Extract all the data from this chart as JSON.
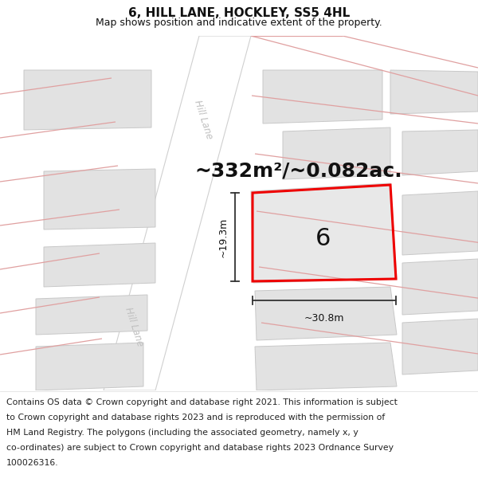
{
  "title": "6, HILL LANE, HOCKLEY, SS5 4HL",
  "subtitle": "Map shows position and indicative extent of the property.",
  "area_label": "~332m²/~0.082ac.",
  "dim_width": "~30.8m",
  "dim_height": "~19.3m",
  "property_number": "6",
  "footer_lines": [
    "Contains OS data © Crown copyright and database right 2021. This information is subject",
    "to Crown copyright and database rights 2023 and is reproduced with the permission of",
    "HM Land Registry. The polygons (including the associated geometry, namely x, y",
    "co-ordinates) are subject to Crown copyright and database rights 2023 Ordnance Survey",
    "100026316."
  ],
  "map_bg": "#f8f8f5",
  "building_fill": "#e2e2e2",
  "building_edge_color": "#c8c8c8",
  "road_fill": "#ffffff",
  "road_edge_color": "#d0d0d0",
  "road_line_color": "#e8b0b0",
  "highlight_color": "#ee0000",
  "road_label_color": "#c0c0c0",
  "arrow_color": "#333333",
  "title_fontsize": 11,
  "subtitle_fontsize": 9,
  "footer_fontsize": 7.8,
  "area_fontsize": 18,
  "number_fontsize": 22,
  "dim_fontsize": 9
}
